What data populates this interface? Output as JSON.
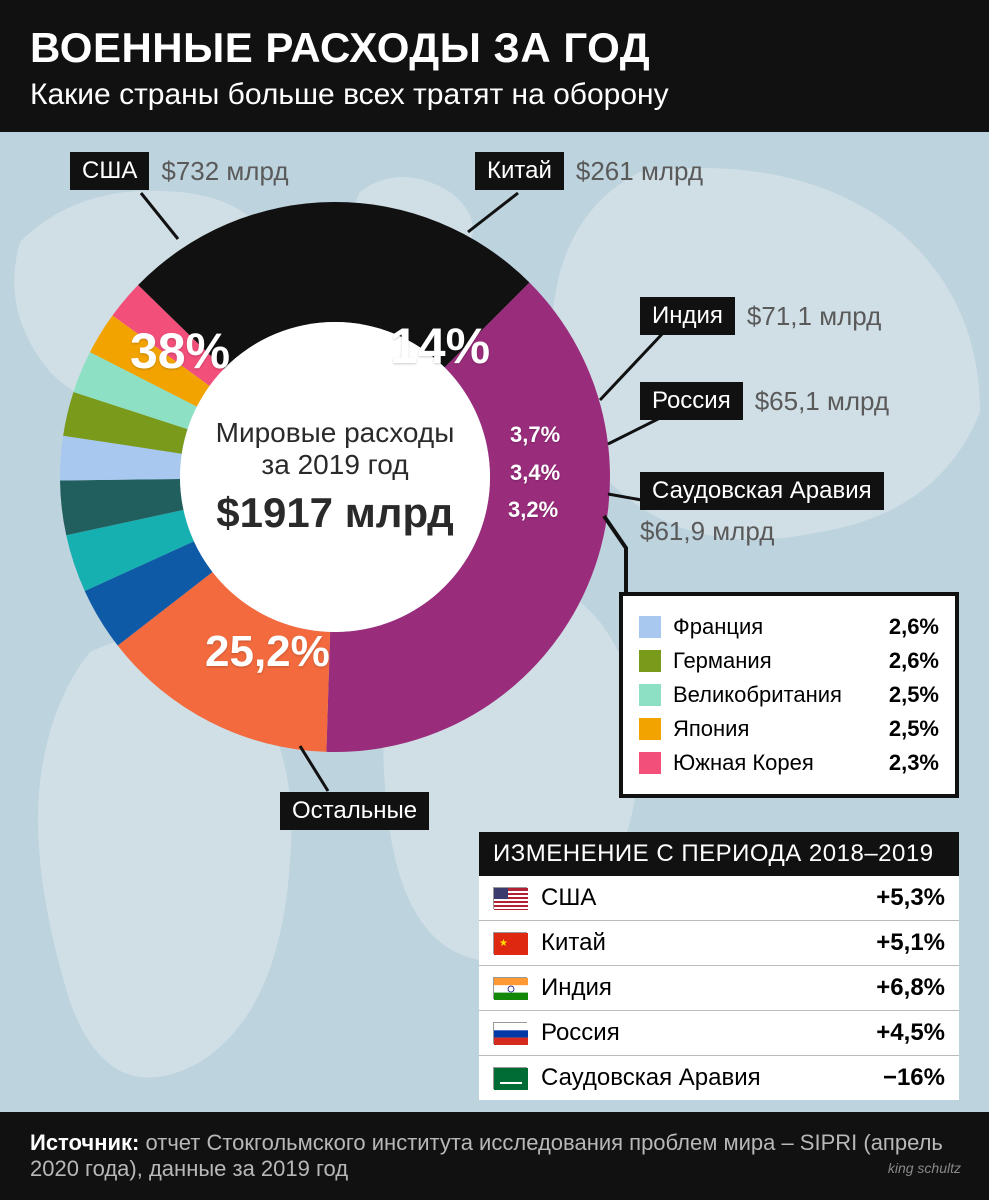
{
  "header": {
    "title": "ВОЕННЫЕ РАСХОДЫ ЗА ГОД",
    "subtitle": "Какие страны больше всех тратят на оборону",
    "title_fontsize": 42,
    "subtitle_fontsize": 30,
    "bg": "#111111",
    "fg": "#ffffff"
  },
  "map": {
    "land_color": "#e4ebef",
    "water_color": "#bdd3de"
  },
  "donut": {
    "type": "pie",
    "outer_radius": 275,
    "inner_radius": 155,
    "center_bg": "#ffffff",
    "center_line1": "Мировые расходы",
    "center_line2": "за 2019 год",
    "center_line3": "$1917 млрд",
    "center_line_fontsize": 28,
    "center_total_fontsize": 42,
    "start_angle_deg": -45,
    "slices": [
      {
        "country": "США",
        "percent": 38.0,
        "pct_label": "38%",
        "amount": "$732 млрд",
        "color": "#9a2c7c",
        "amount_color": "#5a5a5a"
      },
      {
        "country": "Китай",
        "percent": 14.0,
        "pct_label": "14%",
        "amount": "$261 млрд",
        "color": "#f26a3d",
        "amount_color": "#5a5a5a"
      },
      {
        "country": "Индия",
        "percent": 3.7,
        "pct_label": "3,7%",
        "amount": "$71,1 млрд",
        "color": "#0f5aa6",
        "amount_color": "#5a5a5a"
      },
      {
        "country": "Россия",
        "percent": 3.4,
        "pct_label": "3,4%",
        "amount": "$65,1 млрд",
        "color": "#17b0b0",
        "amount_color": "#5a5a5a"
      },
      {
        "country": "Саудовская Аравия",
        "percent": 3.2,
        "pct_label": "3,2%",
        "amount": "$61,9 млрд",
        "color": "#215e5e",
        "amount_color": "#5a5a5a"
      },
      {
        "country": "Франция",
        "percent": 2.6,
        "pct_label": "2,6%",
        "amount": "",
        "color": "#a8c8ef"
      },
      {
        "country": "Германия",
        "percent": 2.6,
        "pct_label": "2,6%",
        "amount": "",
        "color": "#7a9a1c"
      },
      {
        "country": "Великобритания",
        "percent": 2.5,
        "pct_label": "2,5%",
        "amount": "",
        "color": "#8de0c3"
      },
      {
        "country": "Япония",
        "percent": 2.5,
        "pct_label": "2,5%",
        "amount": "",
        "color": "#f2a300"
      },
      {
        "country": "Южная Корея",
        "percent": 2.3,
        "pct_label": "2,3%",
        "amount": "",
        "color": "#f24f7a"
      },
      {
        "country": "Остальные",
        "percent": 25.2,
        "pct_label": "25,2%",
        "amount": "",
        "color": "#111111"
      }
    ],
    "pct_label_fontsize_big": 50,
    "pct_label_fontsize_small": 22
  },
  "callouts": {
    "usa": {
      "tag": "США",
      "amount": "$732 млрд",
      "tag_fontsize": 24,
      "amount_fontsize": 26
    },
    "china": {
      "tag": "Китай",
      "amount": "$261 млрд",
      "tag_fontsize": 24,
      "amount_fontsize": 26
    },
    "india": {
      "tag": "Индия",
      "amount": "$71,1 млрд",
      "tag_fontsize": 24,
      "amount_fontsize": 26
    },
    "russia": {
      "tag": "Россия",
      "amount": "$65,1 млрд",
      "tag_fontsize": 24,
      "amount_fontsize": 26
    },
    "saudi": {
      "tag": "Саудовская Аравия",
      "amount": "$61,9 млрд",
      "tag_fontsize": 24,
      "amount_fontsize": 26
    },
    "others": {
      "tag": "Остальные",
      "tag_fontsize": 24
    }
  },
  "legend": {
    "border_color": "#111111",
    "border_width": 4,
    "bg": "#ffffff",
    "fontsize": 22,
    "items": [
      {
        "swatch": "#a8c8ef",
        "country": "Франция",
        "pct": "2,6%"
      },
      {
        "swatch": "#7a9a1c",
        "country": "Германия",
        "pct": "2,6%"
      },
      {
        "swatch": "#8de0c3",
        "country": "Великобритания",
        "pct": "2,5%"
      },
      {
        "swatch": "#f2a300",
        "country": "Япония",
        "pct": "2,5%"
      },
      {
        "swatch": "#f24f7a",
        "country": "Южная Корея",
        "pct": "2,3%"
      }
    ]
  },
  "change_table": {
    "header": "ИЗМЕНЕНИЕ С ПЕРИОДА 2018–2019",
    "header_bg": "#111111",
    "header_fg": "#ffffff",
    "bg": "#ffffff",
    "fontsize": 24,
    "border_color": "#bbbbbb",
    "rows": [
      {
        "flag": "us",
        "country": "США",
        "change": "+5,3%"
      },
      {
        "flag": "cn",
        "country": "Китай",
        "change": "+5,1%"
      },
      {
        "flag": "in",
        "country": "Индия",
        "change": "+6,8%"
      },
      {
        "flag": "ru",
        "country": "Россия",
        "change": "+4,5%"
      },
      {
        "flag": "sa",
        "country": "Саудовская Аравия",
        "change": "−16%"
      }
    ],
    "flag_colors": {
      "us": [
        "#b22234",
        "#ffffff",
        "#3c3b6e"
      ],
      "cn": [
        "#de2910",
        "#ffde00"
      ],
      "in": [
        "#ff9933",
        "#ffffff",
        "#138808",
        "#000080"
      ],
      "ru": [
        "#ffffff",
        "#0039a6",
        "#d52b1e"
      ],
      "sa": [
        "#006c35",
        "#ffffff"
      ]
    }
  },
  "footer": {
    "label": "Источник:",
    "text": "отчет Стокгольмского института исследования проблем мира – SIPRI (апрель 2020 года), данные за 2019 год",
    "fontsize": 22,
    "bg": "#111111",
    "fg": "#b8b8b8",
    "credit": "king schultz"
  }
}
